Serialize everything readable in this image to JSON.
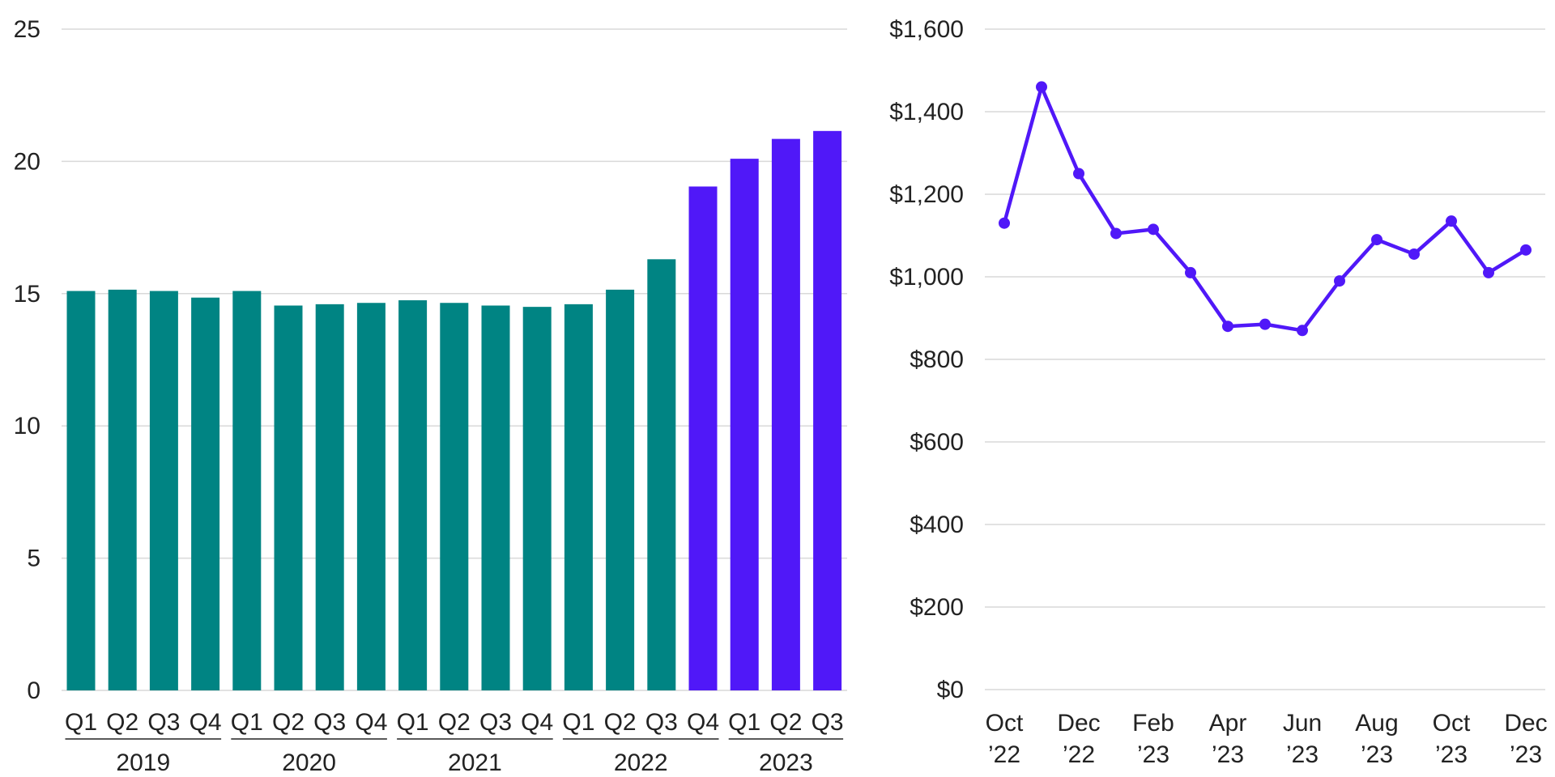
{
  "chart_data": [
    {
      "type": "bar",
      "title": "",
      "xlabel": "",
      "ylabel": "",
      "ylim": [
        0,
        25
      ],
      "yticks": [
        "0",
        "5",
        "10",
        "15",
        "20",
        "25"
      ],
      "grid": true,
      "colors": {
        "primary": "#008483",
        "highlight": "#5018f8",
        "grid": "#d9d9d9"
      },
      "categories": [
        "Q1",
        "Q2",
        "Q3",
        "Q4",
        "Q1",
        "Q2",
        "Q3",
        "Q4",
        "Q1",
        "Q2",
        "Q3",
        "Q4",
        "Q1",
        "Q2",
        "Q3",
        "Q4",
        "Q1",
        "Q2",
        "Q3"
      ],
      "groups": [
        {
          "label": "2019",
          "count": 4
        },
        {
          "label": "2020",
          "count": 4
        },
        {
          "label": "2021",
          "count": 4
        },
        {
          "label": "2022",
          "count": 4
        },
        {
          "label": "2023",
          "count": 3
        }
      ],
      "values": [
        15.1,
        15.15,
        15.1,
        14.85,
        15.1,
        14.55,
        14.6,
        14.65,
        14.75,
        14.65,
        14.55,
        14.5,
        14.6,
        15.15,
        16.3,
        19.05,
        20.1,
        20.85,
        21.15
      ],
      "highlighted": [
        false,
        false,
        false,
        false,
        false,
        false,
        false,
        false,
        false,
        false,
        false,
        false,
        false,
        false,
        false,
        true,
        true,
        true,
        true
      ]
    },
    {
      "type": "line",
      "title": "",
      "xlabel": "",
      "ylabel": "",
      "ylim": [
        0,
        1600
      ],
      "yticks": [
        "$0",
        "$200",
        "$400",
        "$600",
        "$800",
        "$1,000",
        "$1,200",
        "$1,400",
        "$1,600"
      ],
      "grid": true,
      "colors": {
        "line": "#5018f8",
        "grid": "#d9d9d9"
      },
      "x": [
        "Oct '22",
        "Nov '22",
        "Dec '22",
        "Jan '23",
        "Feb '23",
        "Mar '23",
        "Apr '23",
        "May '23",
        "Jun '23",
        "Jul '23",
        "Aug '23",
        "Sep '23",
        "Oct '23",
        "Nov '23",
        "Dec '23"
      ],
      "xtick_labels": [
        {
          "index": 0,
          "month": "Oct",
          "year": "’22"
        },
        {
          "index": 2,
          "month": "Dec",
          "year": "’22"
        },
        {
          "index": 4,
          "month": "Feb",
          "year": "’23"
        },
        {
          "index": 6,
          "month": "Apr",
          "year": "’23"
        },
        {
          "index": 8,
          "month": "Jun",
          "year": "’23"
        },
        {
          "index": 10,
          "month": "Aug",
          "year": "’23"
        },
        {
          "index": 12,
          "month": "Oct",
          "year": "’23"
        },
        {
          "index": 14,
          "month": "Dec",
          "year": "’23"
        }
      ],
      "values": [
        1130,
        1460,
        1250,
        1105,
        1115,
        1010,
        880,
        885,
        870,
        990,
        1090,
        1055,
        1135,
        1010,
        1065
      ]
    }
  ]
}
